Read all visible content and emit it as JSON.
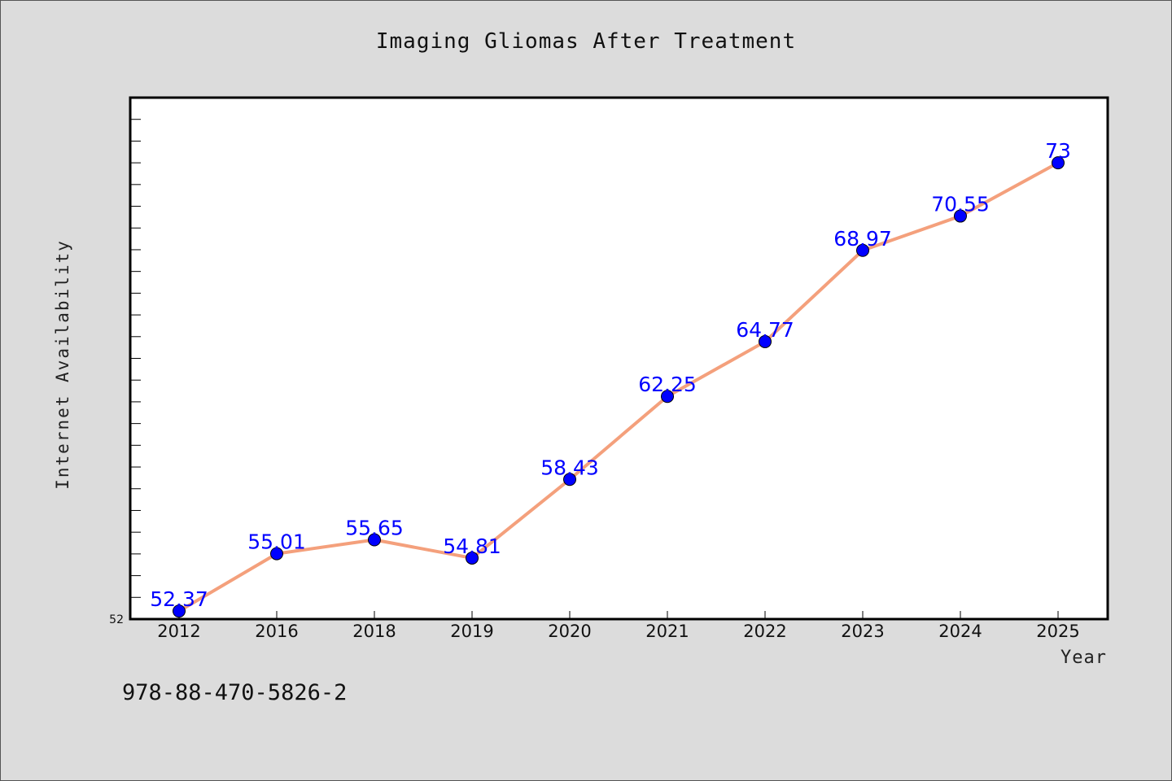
{
  "chart_data": {
    "type": "line",
    "title": "Imaging Gliomas After Treatment",
    "xlabel": "Year",
    "ylabel": "Internet Availability",
    "categories": [
      "2012",
      "2016",
      "2018",
      "2019",
      "2020",
      "2021",
      "2022",
      "2023",
      "2024",
      "2025"
    ],
    "series": [
      {
        "values": [
          52.37,
          55.01,
          55.65,
          54.81,
          58.43,
          62.25,
          64.77,
          68.97,
          70.55,
          73
        ]
      }
    ],
    "data_labels": [
      "52.37",
      "55.01",
      "55.65",
      "54.81",
      "58.43",
      "62.25",
      "64.77",
      "68.97",
      "70.55",
      "73"
    ],
    "y_tick_labels": [
      "52"
    ],
    "ylim": [
      52,
      76
    ],
    "grid": false,
    "line_color": "#f4a07c",
    "marker_color": "#0000ff",
    "label_color": "#0000ff"
  },
  "annotation": {
    "text": "978-88-470-5826-2"
  }
}
